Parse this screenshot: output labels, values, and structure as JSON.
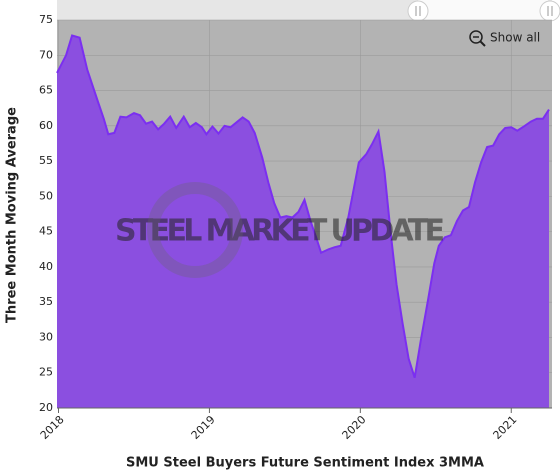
{
  "chart_data": {
    "type": "area",
    "x_label": "SMU Steel Buyers Future Sentiment Index 3MMA",
    "y_label": "Three Month Moving Average",
    "watermark": "STEEL MARKET UPDATE",
    "button": "Show all",
    "x": [
      2017.99,
      2018.05,
      2018.09,
      2018.14,
      2018.19,
      2018.26,
      2018.3,
      2018.33,
      2018.37,
      2018.41,
      2018.45,
      2018.5,
      2018.54,
      2018.58,
      2018.62,
      2018.66,
      2018.7,
      2018.74,
      2018.78,
      2018.83,
      2018.87,
      2018.91,
      2018.95,
      2018.98,
      2019.02,
      2019.06,
      2019.1,
      2019.14,
      2019.18,
      2019.22,
      2019.26,
      2019.3,
      2019.35,
      2019.39,
      2019.43,
      2019.47,
      2019.51,
      2019.55,
      2019.59,
      2019.63,
      2019.67,
      2019.71,
      2019.74,
      2019.79,
      2019.83,
      2019.87,
      2019.92,
      2019.99,
      2020.04,
      2020.08,
      2020.12,
      2020.16,
      2020.2,
      2020.24,
      2020.28,
      2020.32,
      2020.36,
      2020.4,
      2020.45,
      2020.49,
      2020.52,
      2020.56,
      2020.6,
      2020.64,
      2020.68,
      2020.72,
      2020.76,
      2020.8,
      2020.84,
      2020.88,
      2020.92,
      2020.96,
      2021,
      2021.04,
      2021.09,
      2021.13,
      2021.17,
      2021.21,
      2021.25
    ],
    "series": [
      {
        "name": "SMU Steel Buyers Future Sentiment Index 3MMA",
        "color": "#7b2ff0",
        "fill": "#8b4fe0",
        "values": [
          67.5,
          70,
          72.8,
          72.5,
          68,
          63.5,
          61,
          58.8,
          59,
          61.3,
          61.2,
          61.8,
          61.5,
          60.3,
          60.6,
          59.5,
          60.3,
          61.3,
          59.7,
          61.3,
          59.8,
          60.4,
          59.8,
          58.8,
          59.9,
          58.9,
          60,
          59.8,
          60.5,
          61.2,
          60.6,
          59,
          55.5,
          52,
          49,
          47,
          47.2,
          47,
          47.8,
          49.5,
          46.5,
          44,
          42,
          42.5,
          42.8,
          43,
          47,
          54.8,
          56,
          57.5,
          59.2,
          53.5,
          45,
          37.5,
          32,
          27,
          24.3,
          29.5,
          35.5,
          40.5,
          43,
          44.2,
          44.5,
          46.5,
          48,
          48.5,
          52,
          54.8,
          57,
          57.2,
          58.8,
          59.7,
          59.8,
          59.3,
          60,
          60.6,
          61,
          61,
          62.3
        ]
      }
    ],
    "xlim": [
      2017.99,
      2021.27
    ],
    "xticks": [
      2018,
      2019,
      2020,
      2021
    ],
    "ylim": [
      20,
      75
    ],
    "yticks": [
      20,
      25,
      30,
      35,
      40,
      45,
      50,
      55,
      60,
      65,
      70,
      75
    ],
    "grid": true,
    "background": "#b3b3b3"
  }
}
